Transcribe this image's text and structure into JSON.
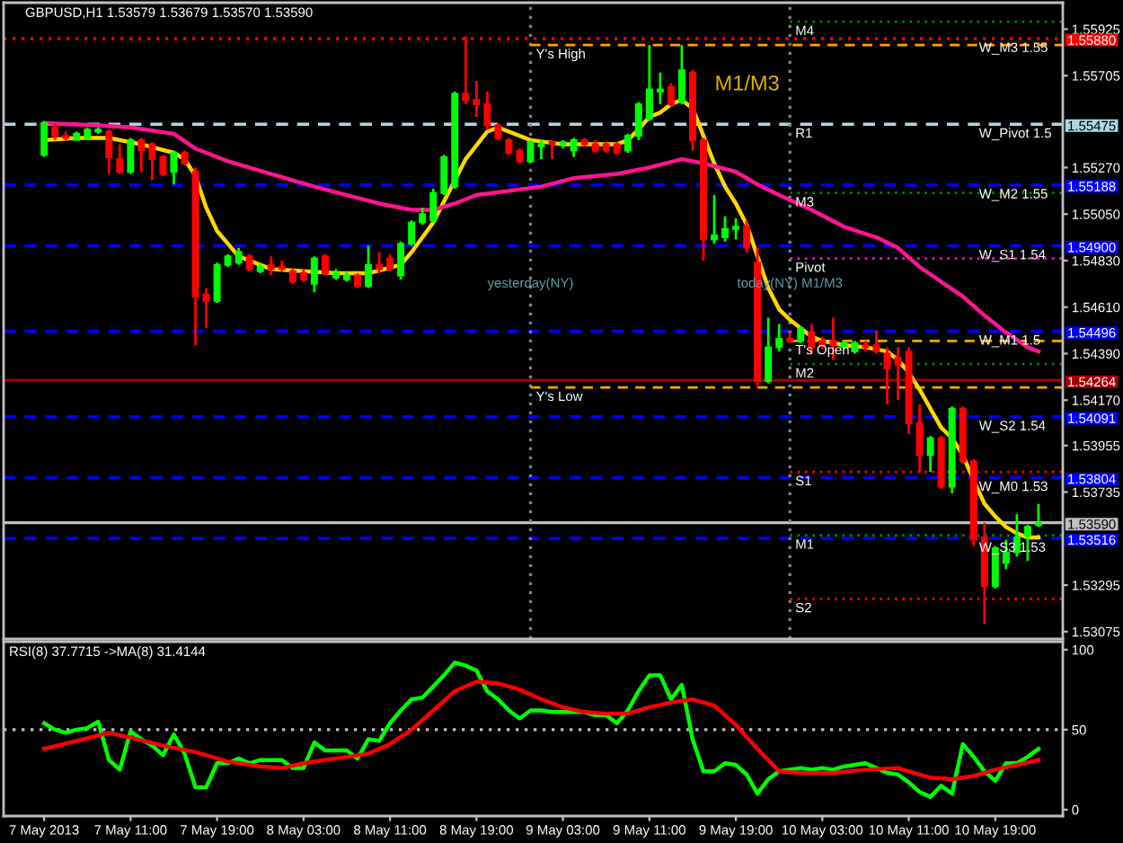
{
  "chart_data": [
    {
      "type": "candlestick",
      "title": "GBPUSD,H1 1.53579 1.53679 1.53570 1.53590",
      "x": [
        "2013-05-07T03:00",
        "2013-05-07T04:00",
        "2013-05-07T05:00",
        "2013-05-07T06:00",
        "2013-05-07T07:00",
        "2013-05-07T08:00",
        "2013-05-07T09:00",
        "2013-05-07T10:00",
        "2013-05-07T11:00",
        "2013-05-07T12:00",
        "2013-05-07T13:00",
        "2013-05-07T14:00",
        "2013-05-07T15:00",
        "2013-05-07T16:00",
        "2013-05-07T17:00",
        "2013-05-07T18:00",
        "2013-05-07T19:00",
        "2013-05-07T20:00",
        "2013-05-07T21:00",
        "2013-05-07T22:00",
        "2013-05-07T23:00",
        "2013-05-08T00:00",
        "2013-05-08T01:00",
        "2013-05-08T02:00",
        "2013-05-08T03:00",
        "2013-05-08T04:00",
        "2013-05-08T05:00",
        "2013-05-08T06:00",
        "2013-05-08T07:00",
        "2013-05-08T08:00",
        "2013-05-08T09:00",
        "2013-05-08T10:00",
        "2013-05-08T11:00",
        "2013-05-08T12:00",
        "2013-05-08T13:00",
        "2013-05-08T14:00",
        "2013-05-08T15:00",
        "2013-05-08T16:00",
        "2013-05-08T17:00",
        "2013-05-08T18:00",
        "2013-05-08T19:00",
        "2013-05-08T20:00",
        "2013-05-08T21:00",
        "2013-05-08T22:00",
        "2013-05-08T23:00",
        "2013-05-09T00:00",
        "2013-05-09T01:00",
        "2013-05-09T02:00",
        "2013-05-09T03:00",
        "2013-05-09T04:00",
        "2013-05-09T05:00",
        "2013-05-09T06:00",
        "2013-05-09T07:00",
        "2013-05-09T08:00",
        "2013-05-09T09:00",
        "2013-05-09T10:00",
        "2013-05-09T11:00",
        "2013-05-09T12:00",
        "2013-05-09T13:00",
        "2013-05-09T14:00",
        "2013-05-09T15:00",
        "2013-05-09T16:00",
        "2013-05-09T17:00",
        "2013-05-09T18:00",
        "2013-05-09T19:00",
        "2013-05-09T20:00",
        "2013-05-09T21:00",
        "2013-05-09T22:00",
        "2013-05-09T23:00",
        "2013-05-10T00:00",
        "2013-05-10T01:00",
        "2013-05-10T02:00",
        "2013-05-10T03:00",
        "2013-05-10T04:00",
        "2013-05-10T05:00",
        "2013-05-10T06:00",
        "2013-05-10T07:00",
        "2013-05-10T08:00",
        "2013-05-10T09:00",
        "2013-05-10T10:00",
        "2013-05-10T11:00",
        "2013-05-10T12:00",
        "2013-05-10T13:00",
        "2013-05-10T14:00",
        "2013-05-10T15:00",
        "2013-05-10T16:00",
        "2013-05-10T17:00",
        "2013-05-10T18:00",
        "2013-05-10T19:00",
        "2013-05-10T20:00",
        "2013-05-10T21:00",
        "2013-05-10T22:00",
        "2013-05-10T23:00"
      ],
      "ohlc": [
        [
          1.5533,
          1.5549,
          1.5532,
          1.5548
        ],
        [
          1.5546,
          1.5548,
          1.554,
          1.5542
        ],
        [
          1.5542,
          1.5544,
          1.554,
          1.5541
        ],
        [
          1.554,
          1.5544,
          1.554,
          1.5543
        ],
        [
          1.5541,
          1.5546,
          1.554,
          1.5545
        ],
        [
          1.5544,
          1.5546,
          1.5543,
          1.5545
        ],
        [
          1.5544,
          1.5545,
          1.5524,
          1.5532
        ],
        [
          1.5531,
          1.5538,
          1.5524,
          1.5525
        ],
        [
          1.5525,
          1.5541,
          1.5524,
          1.554
        ],
        [
          1.554,
          1.5541,
          1.5525,
          1.5535
        ],
        [
          1.5538,
          1.5539,
          1.5521,
          1.5531
        ],
        [
          1.5532,
          1.5533,
          1.5523,
          1.5524
        ],
        [
          1.5525,
          1.5535,
          1.5519,
          1.5534
        ],
        [
          1.5534,
          1.5535,
          1.5528,
          1.5529
        ],
        [
          1.5525,
          1.5527,
          1.5443,
          1.5466
        ],
        [
          1.5467,
          1.547,
          1.5451,
          1.5464
        ],
        [
          1.5464,
          1.5482,
          1.5463,
          1.5481
        ],
        [
          1.5481,
          1.5486,
          1.548,
          1.5485
        ],
        [
          1.5482,
          1.5489,
          1.5481,
          1.5487
        ],
        [
          1.5485,
          1.5486,
          1.5478,
          1.5479
        ],
        [
          1.5478,
          1.5482,
          1.5477,
          1.548
        ],
        [
          1.5481,
          1.5485,
          1.5476,
          1.5479
        ],
        [
          1.548,
          1.5483,
          1.5478,
          1.5479
        ],
        [
          1.5478,
          1.5479,
          1.5472,
          1.5473
        ],
        [
          1.5477,
          1.5479,
          1.5473,
          1.5474
        ],
        [
          1.5472,
          1.5485,
          1.5468,
          1.5484
        ],
        [
          1.5485,
          1.5486,
          1.5476,
          1.5477
        ],
        [
          1.5475,
          1.5479,
          1.5474,
          1.5477
        ],
        [
          1.5474,
          1.5478,
          1.5473,
          1.5476
        ],
        [
          1.5476,
          1.5477,
          1.547,
          1.5471
        ],
        [
          1.5471,
          1.549,
          1.547,
          1.5481
        ],
        [
          1.5481,
          1.5487,
          1.5477,
          1.5479
        ],
        [
          1.5484,
          1.5486,
          1.5478,
          1.5479
        ],
        [
          1.5476,
          1.5492,
          1.5474,
          1.5491
        ],
        [
          1.5491,
          1.5502,
          1.549,
          1.5501
        ],
        [
          1.5501,
          1.5508,
          1.55,
          1.5505
        ],
        [
          1.5502,
          1.5517,
          1.5501,
          1.5515
        ],
        [
          1.5515,
          1.5533,
          1.5514,
          1.5532
        ],
        [
          1.5518,
          1.5563,
          1.5517,
          1.5562
        ],
        [
          1.5562,
          1.5589,
          1.5557,
          1.5559
        ],
        [
          1.5559,
          1.5568,
          1.5551,
          1.5557
        ],
        [
          1.5557,
          1.5563,
          1.5545,
          1.5547
        ],
        [
          1.5547,
          1.5548,
          1.554,
          1.5541
        ],
        [
          1.554,
          1.5541,
          1.5533,
          1.5534
        ],
        [
          1.5535,
          1.5536,
          1.5529,
          1.553
        ],
        [
          1.553,
          1.554,
          1.5529,
          1.5539
        ],
        [
          1.5537,
          1.554,
          1.5531,
          1.5538
        ],
        [
          1.5539,
          1.554,
          1.5531,
          1.5538
        ],
        [
          1.5538,
          1.554,
          1.5536,
          1.5539
        ],
        [
          1.5535,
          1.5541,
          1.5532,
          1.554
        ],
        [
          1.554,
          1.5541,
          1.5537,
          1.5538
        ],
        [
          1.5538,
          1.554,
          1.5534,
          1.5535
        ],
        [
          1.5538,
          1.5539,
          1.5534,
          1.5535
        ],
        [
          1.5538,
          1.5539,
          1.5533,
          1.5534
        ],
        [
          1.5535,
          1.5543,
          1.5534,
          1.5542
        ],
        [
          1.5542,
          1.5558,
          1.554,
          1.5557
        ],
        [
          1.555,
          1.5585,
          1.5549,
          1.5564
        ],
        [
          1.5563,
          1.5572,
          1.5557,
          1.5564
        ],
        [
          1.5565,
          1.5567,
          1.5556,
          1.5557
        ],
        [
          1.5558,
          1.5585,
          1.5557,
          1.5573
        ],
        [
          1.5572,
          1.5573,
          1.5535,
          1.554
        ],
        [
          1.554,
          1.5541,
          1.5483,
          1.5493
        ],
        [
          1.5493,
          1.5514,
          1.5491,
          1.5495
        ],
        [
          1.5494,
          1.5504,
          1.5492,
          1.5498
        ],
        [
          1.5498,
          1.5503,
          1.5493,
          1.5499
        ],
        [
          1.5499,
          1.5502,
          1.5487,
          1.5489
        ],
        [
          1.5482,
          1.5489,
          1.5423,
          1.5426
        ],
        [
          1.5426,
          1.5456,
          1.5425,
          1.5442
        ],
        [
          1.5442,
          1.5453,
          1.544,
          1.5446
        ],
        [
          1.5446,
          1.5449,
          1.5444,
          1.5445
        ],
        [
          1.5445,
          1.5452,
          1.5444,
          1.5451
        ],
        [
          1.5449,
          1.5453,
          1.5439,
          1.5442
        ],
        [
          1.5445,
          1.5447,
          1.5441,
          1.5443
        ],
        [
          1.5445,
          1.5456,
          1.5436,
          1.5443
        ],
        [
          1.5442,
          1.5445,
          1.5441,
          1.5444
        ],
        [
          1.544,
          1.5445,
          1.5439,
          1.5444
        ],
        [
          1.5443,
          1.5445,
          1.544,
          1.5442
        ],
        [
          1.5443,
          1.545,
          1.5439,
          1.544
        ],
        [
          1.5439,
          1.5442,
          1.5415,
          1.5432
        ],
        [
          1.5437,
          1.5442,
          1.5417,
          1.5434
        ],
        [
          1.544,
          1.5442,
          1.5401,
          1.5406
        ],
        [
          1.5406,
          1.5415,
          1.5383,
          1.5391
        ],
        [
          1.5391,
          1.54,
          1.5383,
          1.5399
        ],
        [
          1.5399,
          1.54,
          1.5375,
          1.5376
        ],
        [
          1.5376,
          1.5414,
          1.5373,
          1.5413
        ],
        [
          1.5413,
          1.5414,
          1.5387,
          1.5388
        ],
        [
          1.5388,
          1.5389,
          1.5348,
          1.5351
        ],
        [
          1.5352,
          1.5359,
          1.5311,
          1.5329
        ],
        [
          1.5329,
          1.5348,
          1.5328,
          1.5347
        ],
        [
          1.534,
          1.5351,
          1.5337,
          1.5345
        ],
        [
          1.5345,
          1.5363,
          1.5343,
          1.5352
        ],
        [
          1.5353,
          1.5358,
          1.5341,
          1.5357
        ],
        [
          1.53579,
          1.53679,
          1.5357,
          1.5359
        ]
      ],
      "colors": [
        "#00ff00",
        "#ff0000",
        "#ff0000",
        "#00ff00",
        "#00ff00",
        "#00ff00",
        "#ff0000",
        "#ff0000",
        "#00ff00",
        "#ff0000",
        "#ff0000",
        "#ff0000",
        "#00ff00",
        "#ff0000",
        "#ff0000",
        "#ff0000",
        "#00ff00",
        "#00ff00",
        "#00ff00",
        "#ff0000",
        "#00ff00",
        "#ff0000",
        "#ff0000",
        "#ff0000",
        "#ff0000",
        "#00ff00",
        "#ff0000",
        "#00ff00",
        "#00ff00",
        "#ff0000",
        "#00ff00",
        "#ff0000",
        "#ff0000",
        "#00ff00",
        "#00ff00",
        "#00ff00",
        "#00ff00",
        "#00ff00",
        "#00ff00",
        "#ff0000",
        "#ff0000",
        "#ff0000",
        "#ff0000",
        "#ff0000",
        "#ff0000",
        "#00ff00",
        "#00ff00",
        "#ff0000",
        "#00ff00",
        "#00ff00",
        "#ff0000",
        "#ff0000",
        "#ff0000",
        "#ff0000",
        "#00ff00",
        "#00ff00",
        "#00ff00",
        "#00ff00",
        "#ff0000",
        "#00ff00",
        "#ff0000",
        "#ff0000",
        "#00ff00",
        "#00ff00",
        "#00ff00",
        "#ff0000",
        "#ff0000",
        "#00ff00",
        "#00ff00",
        "#ff0000",
        "#00ff00",
        "#ff0000",
        "#ff0000",
        "#ff0000",
        "#00ff00",
        "#00ff00",
        "#ff0000",
        "#ff0000",
        "#ff0000",
        "#ff0000",
        "#ff0000",
        "#ff0000",
        "#00ff00",
        "#ff0000",
        "#00ff00",
        "#ff0000",
        "#ff0000",
        "#ff0000",
        "#00ff00",
        "#00ff00",
        "#00ff00",
        "#00ff00",
        "#00ff00"
      ],
      "series": [
        {
          "type": "line",
          "color": "#ffd700",
          "x": [
            "2013-05-07T03:00",
            "2013-05-07T06:00",
            "2013-05-07T09:00",
            "2013-05-07T12:00",
            "2013-05-07T15:00",
            "2013-05-07T16:00",
            "2013-05-07T17:00",
            "2013-05-07T18:00",
            "2013-05-07T19:00",
            "2013-05-07T21:00",
            "2013-05-08T00:00",
            "2013-05-08T03:00",
            "2013-05-08T06:00",
            "2013-05-08T09:00",
            "2013-05-08T12:00",
            "2013-05-08T13:00",
            "2013-05-08T15:00",
            "2013-05-08T17:00",
            "2013-05-08T18:00",
            "2013-05-08T20:00",
            "2013-05-08T21:00",
            "2013-05-09T00:00",
            "2013-05-09T03:00",
            "2013-05-09T06:00",
            "2013-05-09T08:00",
            "2013-05-09T09:00",
            "2013-05-09T10:00",
            "2013-05-09T11:00",
            "2013-05-09T12:00",
            "2013-05-09T13:00",
            "2013-05-09T14:00",
            "2013-05-09T15:00",
            "2013-05-09T16:00",
            "2013-05-09T17:00",
            "2013-05-09T18:00",
            "2013-05-09T19:00",
            "2013-05-09T20:00",
            "2013-05-09T21:00",
            "2013-05-09T22:00",
            "2013-05-09T23:00",
            "2013-05-10T00:00",
            "2013-05-10T01:00",
            "2013-05-10T02:00",
            "2013-05-10T03:00",
            "2013-05-10T05:00",
            "2013-05-10T07:00",
            "2013-05-10T09:00",
            "2013-05-10T10:00",
            "2013-05-10T11:00",
            "2013-05-10T12:00",
            "2013-05-10T13:00",
            "2013-05-10T14:00",
            "2013-05-10T15:00",
            "2013-05-10T16:00",
            "2013-05-10T17:00",
            "2013-05-10T18:00",
            "2013-05-10T19:00",
            "2013-05-10T20:00",
            "2013-05-10T21:00",
            "2013-05-10T22:00",
            "2013-05-10T23:00"
          ],
          "values": [
            1.554,
            1.5541,
            1.5541,
            1.5538,
            1.5534,
            1.5531,
            1.5523,
            1.5508,
            1.5497,
            1.5485,
            1.5479,
            1.5478,
            1.5477,
            1.5477,
            1.5481,
            1.5487,
            1.5501,
            1.5521,
            1.5531,
            1.5544,
            1.5546,
            1.554,
            1.5538,
            1.5538,
            1.5538,
            1.554,
            1.5545,
            1.5551,
            1.5553,
            1.5557,
            1.5559,
            1.5555,
            1.5542,
            1.5529,
            1.5518,
            1.551,
            1.55,
            1.5485,
            1.547,
            1.546,
            1.5455,
            1.5451,
            1.5447,
            1.5445,
            1.5443,
            1.5442,
            1.544,
            1.5436,
            1.543,
            1.5422,
            1.5413,
            1.5404,
            1.5399,
            1.5391,
            1.5379,
            1.5368,
            1.5362,
            1.5357,
            1.5354,
            1.5352,
            1.5352
          ]
        },
        {
          "type": "line",
          "color": "#ff1493",
          "x": [
            "2013-05-07T03:00",
            "2013-05-07T08:00",
            "2013-05-07T11:00",
            "2013-05-07T15:00",
            "2013-05-07T17:00",
            "2013-05-07T20:00",
            "2013-05-08T00:00",
            "2013-05-08T04:00",
            "2013-05-08T07:00",
            "2013-05-08T10:00",
            "2013-05-08T13:00",
            "2013-05-08T15:00",
            "2013-05-08T17:00",
            "2013-05-08T19:00",
            "2013-05-08T22:00",
            "2013-05-09T01:00",
            "2013-05-09T04:00",
            "2013-05-09T08:00",
            "2013-05-09T11:00",
            "2013-05-09T14:00",
            "2013-05-09T16:00",
            "2013-05-09T19:00",
            "2013-05-09T21:00",
            "2013-05-09T23:00",
            "2013-05-10T02:00",
            "2013-05-10T05:00",
            "2013-05-10T08:00",
            "2013-05-10T10:00",
            "2013-05-10T12:00",
            "2013-05-10T14:00",
            "2013-05-10T16:00",
            "2013-05-10T18:00",
            "2013-05-10T20:00",
            "2013-05-10T22:00",
            "2013-05-10T23:00"
          ],
          "values": [
            1.5548,
            1.5547,
            1.5546,
            1.5543,
            1.5536,
            1.553,
            1.5524,
            1.5518,
            1.5514,
            1.551,
            1.5507,
            1.5507,
            1.551,
            1.5514,
            1.5516,
            1.5518,
            1.5522,
            1.5524,
            1.5527,
            1.5531,
            1.5529,
            1.5525,
            1.5519,
            1.5514,
            1.5507,
            1.5499,
            1.5494,
            1.5489,
            1.548,
            1.5473,
            1.5466,
            1.5457,
            1.5449,
            1.5442,
            1.544
          ]
        },
        {
          "type": "line",
          "color": "#ffa500",
          "line_style": "dashed",
          "x": [
            "2013-05-09T00:00",
            "2013-05-11T01:15"
          ],
          "values": [
            1.5585,
            1.5585
          ]
        },
        {
          "type": "line",
          "color": "#ffa500",
          "line_style": "dashed",
          "x": [
            "2013-05-09T00:00",
            "2013-05-11T01:15"
          ],
          "values": [
            1.5423,
            1.5423
          ]
        },
        {
          "type": "line",
          "color": "#008000",
          "line_style": "dotted",
          "x": [
            "2013-05-10T00:00",
            "2013-05-11T01:15"
          ],
          "values": [
            1.5596,
            1.5596
          ]
        },
        {
          "type": "line",
          "color": "#008000",
          "line_style": "dotted",
          "x": [
            "2013-05-10T00:00",
            "2013-05-11T01:15"
          ],
          "values": [
            1.5515,
            1.5515
          ]
        },
        {
          "type": "line",
          "color": "#ff00ff",
          "line_style": "dotted",
          "x": [
            "2013-05-10T00:00",
            "2013-05-11T01:15"
          ],
          "values": [
            1.5484,
            1.5484
          ]
        },
        {
          "type": "line",
          "color": "#ffa500",
          "line_style": "dashed",
          "x": [
            "2013-05-10T00:00",
            "2013-05-11T01:15"
          ],
          "values": [
            1.5445,
            1.5445
          ]
        },
        {
          "type": "line",
          "color": "#008000",
          "line_style": "dotted",
          "x": [
            "2013-05-10T00:00",
            "2013-05-11T01:15"
          ],
          "values": [
            1.5434,
            1.5434
          ]
        },
        {
          "type": "line",
          "color": "#ff0000",
          "line_style": "dotted",
          "x": [
            "2013-05-10T00:00",
            "2013-05-11T01:15"
          ],
          "values": [
            1.5383,
            1.5383
          ]
        },
        {
          "type": "line",
          "color": "#008000",
          "line_style": "dotted",
          "x": [
            "2013-05-10T00:00",
            "2013-05-11T01:15"
          ],
          "values": [
            1.5353,
            1.5353
          ]
        },
        {
          "type": "line",
          "color": "#ff0000",
          "line_style": "dotted",
          "x": [
            "2013-05-10T00:00",
            "2013-05-11T01:15"
          ],
          "values": [
            1.5323,
            1.5323
          ]
        }
      ],
      "ref_lines": [
        {
          "axis": "y",
          "value": 1.5588,
          "label": "1.55880",
          "color": "#ff0000",
          "line_style": "dotted"
        },
        {
          "axis": "y",
          "value": 1.55475,
          "label": "1.55475",
          "color": "#add8e6",
          "line_style": "dashed"
        },
        {
          "axis": "y",
          "value": 1.55188,
          "label": "1.55188",
          "color": "#0000ff",
          "line_style": "dashed"
        },
        {
          "axis": "y",
          "value": 1.549,
          "label": "1.54900",
          "color": "#0000ff",
          "line_style": "dashed"
        },
        {
          "axis": "y",
          "value": 1.54496,
          "label": "1.54496",
          "color": "#0000ff",
          "line_style": "dashed"
        },
        {
          "axis": "y",
          "value": 1.54264,
          "label": "1.54264",
          "color": "#a00000",
          "line_style": "solid"
        },
        {
          "axis": "y",
          "value": 1.54091,
          "label": "1.54091",
          "color": "#0000ff",
          "line_style": "dashed"
        },
        {
          "axis": "y",
          "value": 1.53804,
          "label": "1.53804",
          "color": "#0000ff",
          "line_style": "dashed"
        },
        {
          "axis": "y",
          "value": 1.5359,
          "label": "1.53590",
          "color": "#c0c0c0",
          "line_style": "solid"
        },
        {
          "axis": "y",
          "value": 1.53516,
          "label": "1.53516",
          "color": "#0000ff",
          "line_style": "dashed"
        },
        {
          "axis": "x",
          "value": "2013-05-09T00:00",
          "label": "yesterday(NY)",
          "color": "#808080",
          "line_style": "dotted"
        },
        {
          "axis": "x",
          "value": "2013-05-10T00:00",
          "label": "today(NY) M1/M3",
          "color": "#808080",
          "line_style": "dotted"
        }
      ],
      "annotations": [
        "M1/M3",
        {
          "text": "Y's High",
          "x": "2013-05-09T00:00",
          "y": 1.5585
        },
        {
          "text": "Y's Low",
          "x": "2013-05-09T00:00",
          "y": 1.5423
        },
        {
          "text": "M4",
          "x": "2013-05-10T00:00",
          "y": 1.5596
        },
        {
          "text": "R1",
          "x": "2013-05-10T00:00",
          "y": 1.55475
        },
        {
          "text": "M3",
          "x": "2013-05-10T00:00",
          "y": 1.5515
        },
        {
          "text": "Pivot",
          "x": "2013-05-10T00:00",
          "y": 1.5484
        },
        {
          "text": "T's Open",
          "x": "2013-05-10T00:00",
          "y": 1.5445
        },
        {
          "text": "M2",
          "x": "2013-05-10T00:00",
          "y": 1.5434
        },
        {
          "text": "S1",
          "x": "2013-05-10T00:00",
          "y": 1.5383
        },
        {
          "text": "M1",
          "x": "2013-05-10T00:00",
          "y": 1.5353
        },
        {
          "text": "S2",
          "x": "2013-05-10T00:00",
          "y": 1.5323
        },
        {
          "text": "W_M3 1.55",
          "x": "2013-05-10T17:00",
          "y": 1.5588
        },
        {
          "text": "W_Pivot 1.5",
          "x": "2013-05-10T17:00",
          "y": 1.55475
        },
        {
          "text": "W_M2 1.55",
          "x": "2013-05-10T17:00",
          "y": 1.55188
        },
        {
          "text": "W_S1 1.54",
          "x": "2013-05-10T17:00",
          "y": 1.549
        },
        {
          "text": "W_M1 1.5",
          "x": "2013-05-10T17:00",
          "y": 1.54496
        },
        {
          "text": "W_S2 1.54",
          "x": "2013-05-10T17:00",
          "y": 1.54091
        },
        {
          "text": "W_M0 1.53",
          "x": "2013-05-10T17:00",
          "y": 1.53804
        },
        {
          "text": "W_S3 1.53",
          "x": "2013-05-10T17:00",
          "y": 1.53516
        }
      ],
      "xlim": [
        "2013-05-06T23:15",
        "2013-05-11T01:15"
      ],
      "ylim": [
        1.5304,
        1.5605
      ],
      "yticks": [
        1.55925,
        1.55705,
        {
          "value": 1.5527,
          "label": "1.55270"
        },
        {
          "value": 1.5505,
          "label": "1.55050"
        },
        {
          "value": 1.5483,
          "label": "1.54830"
        },
        {
          "value": 1.5461,
          "label": "1.54610"
        },
        {
          "value": 1.5439,
          "label": "1.54390"
        },
        {
          "value": 1.5417,
          "label": "1.54170"
        },
        1.53955,
        1.53735,
        1.53295,
        1.53075
      ],
      "tick_labels": "y"
    },
    {
      "type": "line",
      "title": "RSI(8) 37.7715 ->MA(8) 31.4144",
      "x": [
        "2013-05-07T03:00",
        "2013-05-07T04:00",
        "2013-05-07T05:00",
        "2013-05-07T06:00",
        "2013-05-07T07:00",
        "2013-05-07T08:00",
        "2013-05-07T09:00",
        "2013-05-07T10:00",
        "2013-05-07T11:00",
        "2013-05-07T12:00",
        "2013-05-07T13:00",
        "2013-05-07T14:00",
        "2013-05-07T15:00",
        "2013-05-07T16:00",
        "2013-05-07T17:00",
        "2013-05-07T18:00",
        "2013-05-07T19:00",
        "2013-05-07T20:00",
        "2013-05-07T21:00",
        "2013-05-07T22:00",
        "2013-05-07T23:00",
        "2013-05-08T00:00",
        "2013-05-08T01:00",
        "2013-05-08T02:00",
        "2013-05-08T03:00",
        "2013-05-08T04:00",
        "2013-05-08T05:00",
        "2013-05-08T06:00",
        "2013-05-08T07:00",
        "2013-05-08T08:00",
        "2013-05-08T09:00",
        "2013-05-08T10:00",
        "2013-05-08T11:00",
        "2013-05-08T12:00",
        "2013-05-08T13:00",
        "2013-05-08T14:00",
        "2013-05-08T15:00",
        "2013-05-08T16:00",
        "2013-05-08T17:00",
        "2013-05-08T18:00",
        "2013-05-08T19:00",
        "2013-05-08T20:00",
        "2013-05-08T21:00",
        "2013-05-08T22:00",
        "2013-05-08T23:00",
        "2013-05-09T00:00",
        "2013-05-09T01:00",
        "2013-05-09T02:00",
        "2013-05-09T03:00",
        "2013-05-09T04:00",
        "2013-05-09T05:00",
        "2013-05-09T06:00",
        "2013-05-09T07:00",
        "2013-05-09T08:00",
        "2013-05-09T09:00",
        "2013-05-09T10:00",
        "2013-05-09T11:00",
        "2013-05-09T12:00",
        "2013-05-09T13:00",
        "2013-05-09T14:00",
        "2013-05-09T15:00",
        "2013-05-09T16:00",
        "2013-05-09T17:00",
        "2013-05-09T18:00",
        "2013-05-09T19:00",
        "2013-05-09T20:00",
        "2013-05-09T21:00",
        "2013-05-09T22:00",
        "2013-05-09T23:00",
        "2013-05-10T00:00",
        "2013-05-10T01:00",
        "2013-05-10T02:00",
        "2013-05-10T03:00",
        "2013-05-10T04:00",
        "2013-05-10T05:00",
        "2013-05-10T06:00",
        "2013-05-10T07:00",
        "2013-05-10T08:00",
        "2013-05-10T09:00",
        "2013-05-10T10:00",
        "2013-05-10T11:00",
        "2013-05-10T12:00",
        "2013-05-10T13:00",
        "2013-05-10T14:00",
        "2013-05-10T15:00",
        "2013-05-10T16:00",
        "2013-05-10T17:00",
        "2013-05-10T18:00",
        "2013-05-10T19:00",
        "2013-05-10T20:00",
        "2013-05-10T21:00",
        "2013-05-10T22:00",
        "2013-05-10T23:00"
      ],
      "series": [
        {
          "color": "#00ff00",
          "values": [
            54,
            50,
            48,
            50,
            51,
            55,
            31,
            25,
            49,
            44,
            40,
            34,
            47,
            35,
            14,
            14,
            29,
            29,
            32,
            29,
            31,
            31,
            31,
            26,
            26,
            42,
            37,
            37,
            37,
            32,
            44,
            43,
            54,
            62,
            69,
            70,
            77,
            84,
            92,
            90,
            87,
            74,
            69,
            62,
            57,
            62,
            62,
            61,
            61,
            61,
            61,
            59,
            59,
            54,
            62,
            74,
            84,
            84,
            69,
            78,
            44,
            24,
            24,
            29,
            28,
            22,
            10,
            19,
            24,
            25,
            26,
            25,
            26,
            25,
            27,
            28,
            29,
            26,
            23,
            22,
            17,
            11,
            8,
            15,
            10,
            41,
            33,
            24,
            18,
            29,
            29,
            33,
            38
          ]
        },
        {
          "color": "#ff0000",
          "x": [
            "2013-05-07T03:00",
            "2013-05-07T06:00",
            "2013-05-07T09:00",
            "2013-05-07T11:00",
            "2013-05-07T14:00",
            "2013-05-07T17:00",
            "2013-05-07T20:00",
            "2013-05-07T23:00",
            "2013-05-08T01:00",
            "2013-05-08T03:00",
            "2013-05-08T06:00",
            "2013-05-08T09:00",
            "2013-05-08T11:00",
            "2013-05-08T13:00",
            "2013-05-08T15:00",
            "2013-05-08T17:00",
            "2013-05-08T19:00",
            "2013-05-08T21:00",
            "2013-05-08T23:00",
            "2013-05-09T01:00",
            "2013-05-09T03:00",
            "2013-05-09T05:00",
            "2013-05-09T07:00",
            "2013-05-09T09:00",
            "2013-05-09T11:00",
            "2013-05-09T13:00",
            "2013-05-09T15:00",
            "2013-05-09T17:00",
            "2013-05-09T19:00",
            "2013-05-09T21:00",
            "2013-05-09T23:00",
            "2013-05-10T01:00",
            "2013-05-10T04:00",
            "2013-05-10T07:00",
            "2013-05-10T10:00",
            "2013-05-10T13:00",
            "2013-05-10T15:00",
            "2013-05-10T17:00",
            "2013-05-10T19:00",
            "2013-05-10T21:00",
            "2013-05-10T23:00"
          ],
          "values": [
            38,
            43,
            48,
            45,
            40,
            36,
            30,
            27,
            26,
            29,
            32,
            35,
            41,
            50,
            62,
            74,
            80,
            79,
            75,
            69,
            64,
            61,
            60,
            60,
            64,
            67,
            69,
            65,
            53,
            38,
            24,
            23,
            23,
            25,
            26,
            20,
            19,
            21,
            25,
            28,
            31
          ]
        }
      ],
      "ref_lines": [
        {
          "axis": "y",
          "value": 50,
          "color": "#c0c0c0",
          "line_style": "dotted"
        }
      ],
      "xlim": [
        "2013-05-06T23:15",
        "2013-05-11T01:15"
      ],
      "xticks": [
        {
          "value": "2013-05-07T03:00",
          "label": "7 May 2013"
        },
        {
          "value": "2013-05-07T11:00",
          "label": "7 May 11:00"
        },
        {
          "value": "2013-05-07T19:00",
          "label": "7 May 19:00"
        },
        {
          "value": "2013-05-08T03:00",
          "label": "8 May 03:00"
        },
        {
          "value": "2013-05-08T11:00",
          "label": "8 May 11:00"
        },
        {
          "value": "2013-05-08T19:00",
          "label": "8 May 19:00"
        },
        {
          "value": "2013-05-09T03:00",
          "label": "9 May 03:00"
        },
        {
          "value": "2013-05-09T11:00",
          "label": "9 May 11:00"
        },
        {
          "value": "2013-05-09T19:00",
          "label": "9 May 19:00"
        },
        {
          "value": "2013-05-10T03:00",
          "label": "10 May 03:00"
        },
        {
          "value": "2013-05-10T11:00",
          "label": "10 May 11:00"
        },
        {
          "value": "2013-05-10T19:00",
          "label": "10 May 19:00"
        }
      ],
      "ylim": [
        -4,
        105
      ],
      "yticks": [
        0,
        50,
        100
      ]
    }
  ]
}
